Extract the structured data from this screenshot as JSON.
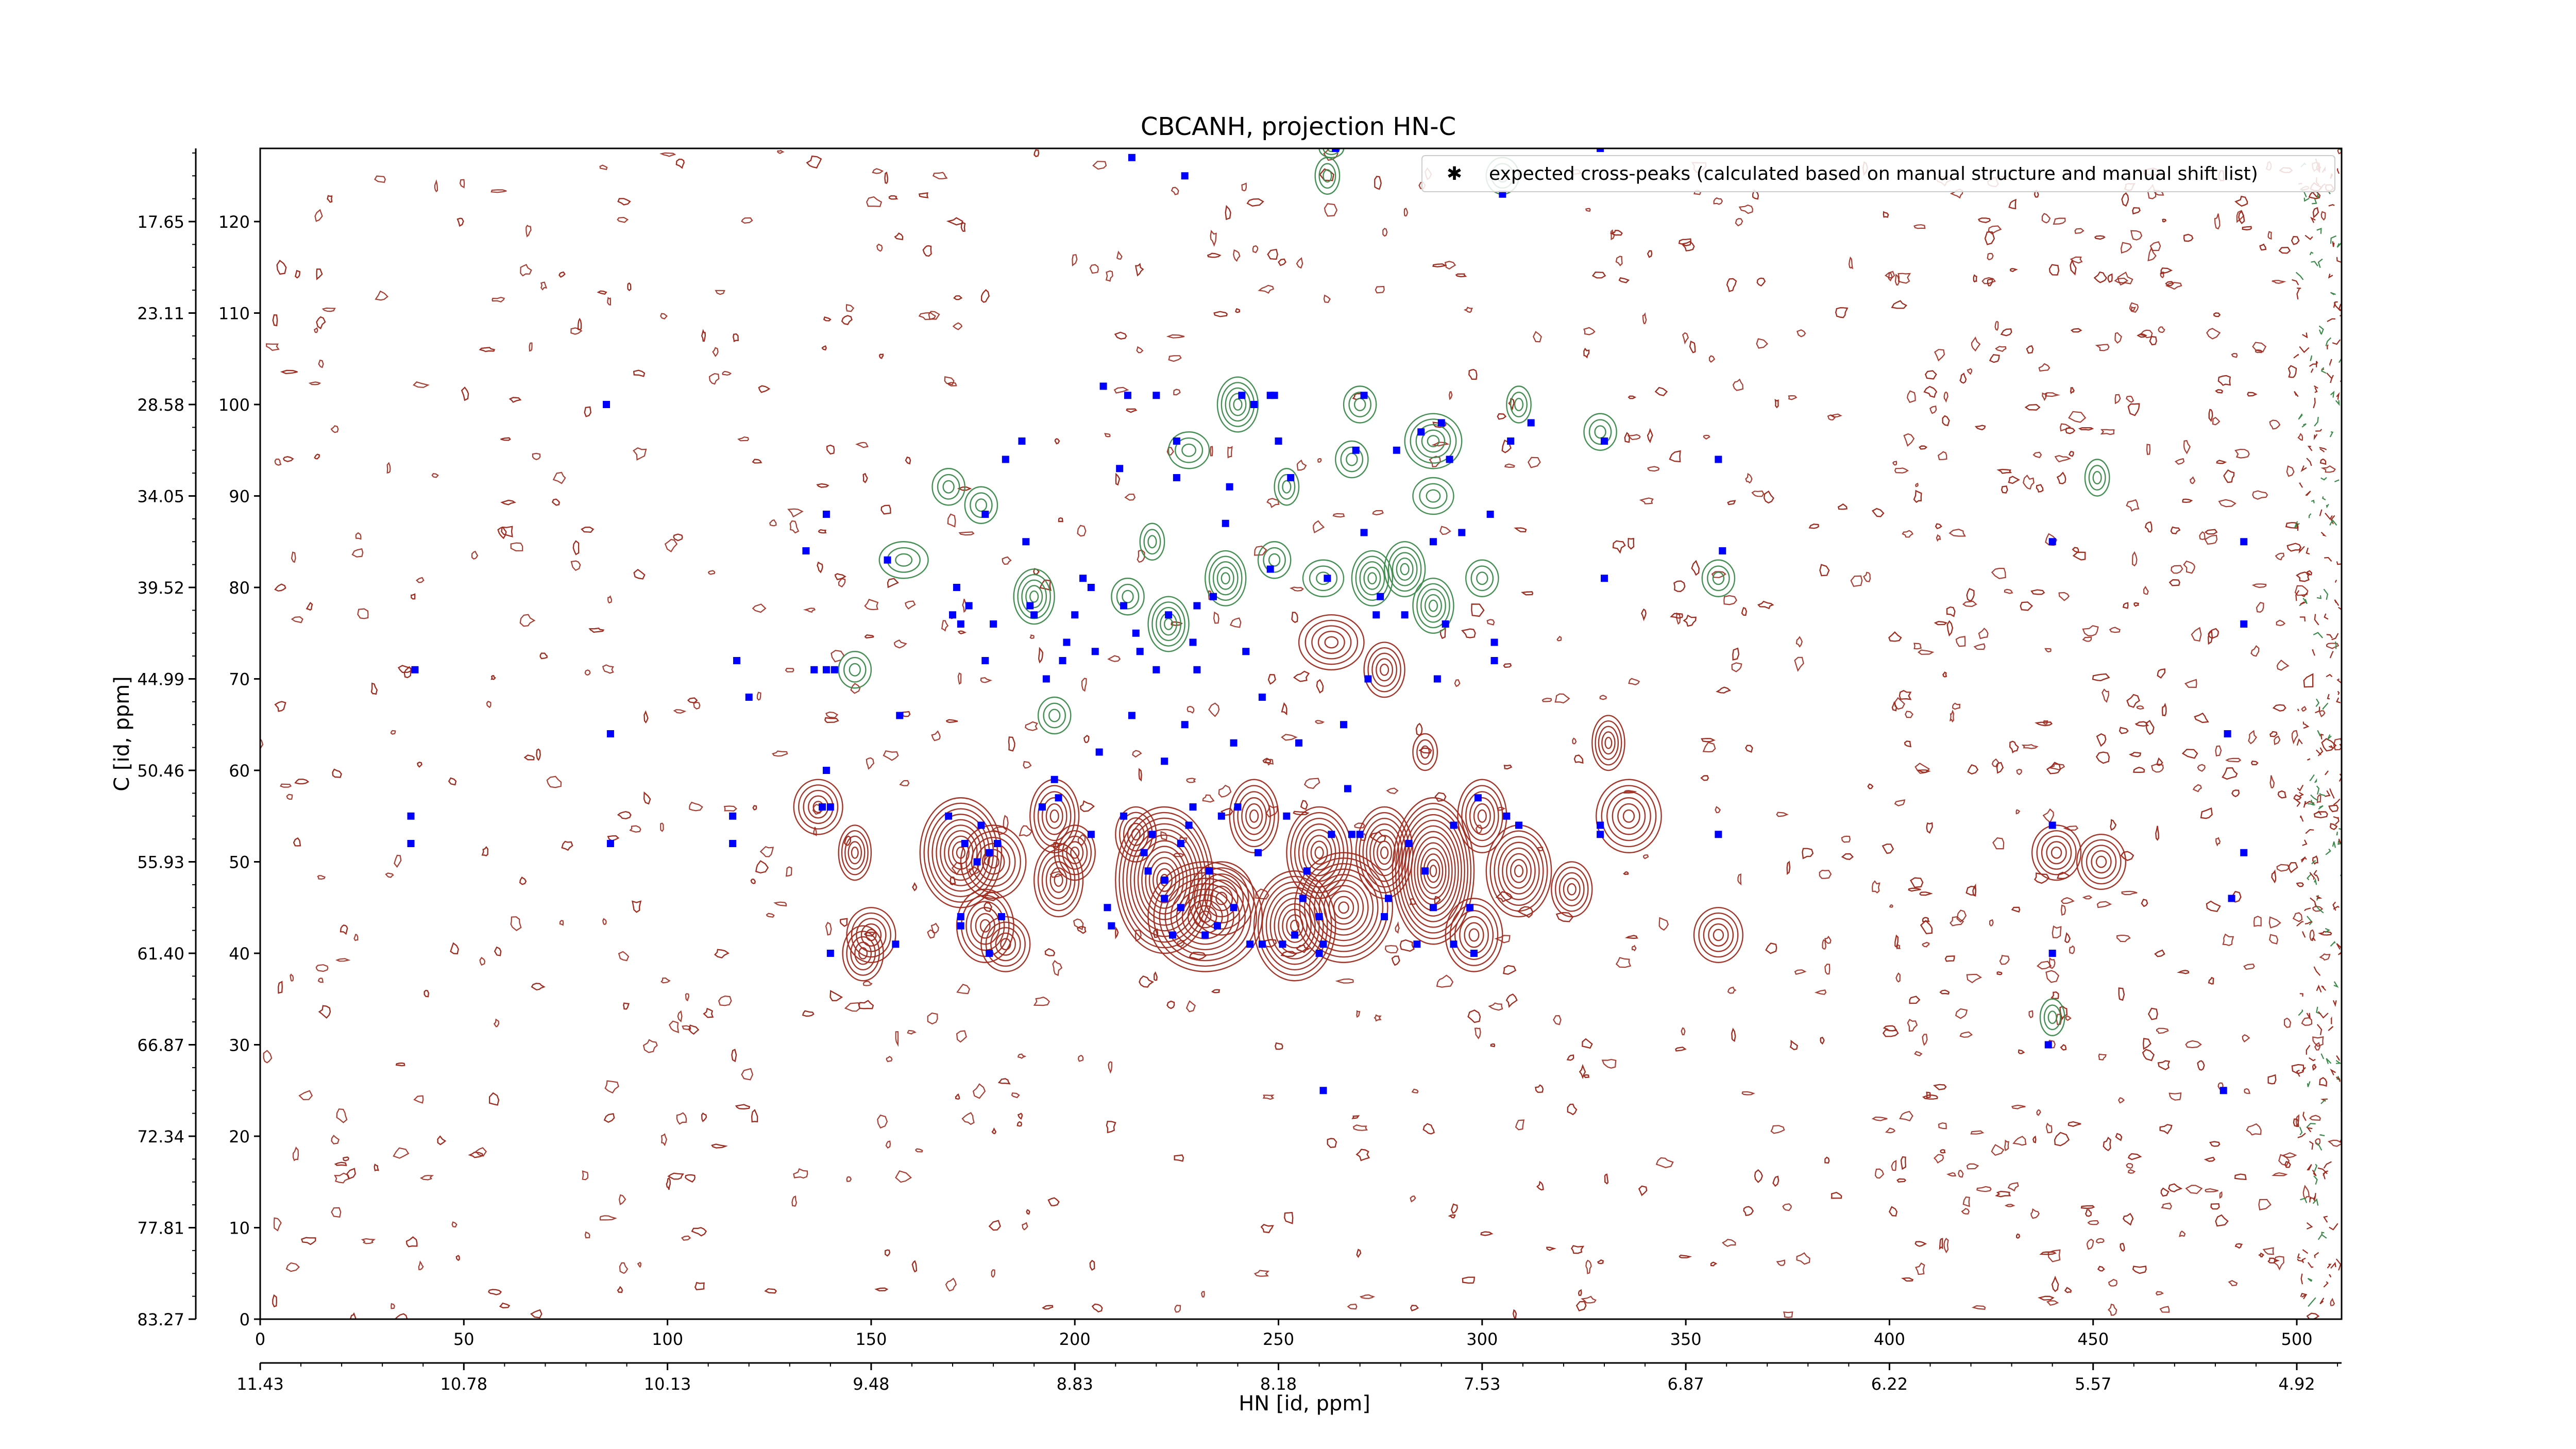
{
  "chart_data": {
    "type": "scatter",
    "title": "CBCANH, projection HN-C",
    "xlabel": "HN [id, ppm]",
    "ylabel": "C [id, ppm]",
    "x_index_ticks": [
      "0",
      "50",
      "100",
      "150",
      "200",
      "250",
      "300",
      "350",
      "400",
      "450",
      "500"
    ],
    "x_ppm_ticks": [
      "11.43",
      "10.78",
      "10.13",
      "9.48",
      "8.83",
      "8.18",
      "7.53",
      "6.87",
      "6.22",
      "5.57",
      "4.92"
    ],
    "y_index_ticks": [
      "0",
      "10",
      "20",
      "30",
      "40",
      "50",
      "60",
      "70",
      "80",
      "90",
      "100",
      "110",
      "120"
    ],
    "y_ppm_ticks": [
      "83.27",
      "77.81",
      "72.34",
      "66.87",
      "61.40",
      "55.93",
      "50.46",
      "44.99",
      "39.52",
      "34.05",
      "28.58",
      "23.11",
      "17.65"
    ],
    "xlim": [
      0,
      511
    ],
    "ylim": [
      0,
      128
    ],
    "legend": {
      "label": "expected cross-peaks (calculated based on manual structure and manual shift list)",
      "placement": "top-right"
    },
    "colors": {
      "positive_contour": "#a02a1e",
      "negative_contour": "#3a8a4a",
      "expected_marker": "#0000ff"
    },
    "contours_positive": [
      [
        137,
        56,
        6,
        3
      ],
      [
        146,
        51,
        4,
        3
      ],
      [
        148,
        40,
        5,
        3
      ],
      [
        150,
        42,
        6,
        3
      ],
      [
        172,
        51,
        10,
        6
      ],
      [
        180,
        50,
        8,
        4
      ],
      [
        178,
        43,
        7,
        4
      ],
      [
        183,
        41,
        6,
        3
      ],
      [
        195,
        55,
        6,
        4
      ],
      [
        200,
        51,
        5,
        3
      ],
      [
        196,
        48,
        6,
        4
      ],
      [
        215,
        53,
        5,
        3
      ],
      [
        222,
        48,
        12,
        8
      ],
      [
        232,
        44,
        14,
        6
      ],
      [
        236,
        46,
        8,
        4
      ],
      [
        244,
        55,
        6,
        4
      ],
      [
        254,
        43,
        10,
        6
      ],
      [
        260,
        51,
        8,
        5
      ],
      [
        266,
        45,
        12,
        6
      ],
      [
        276,
        51,
        7,
        5
      ],
      [
        288,
        49,
        10,
        8
      ],
      [
        300,
        55,
        6,
        4
      ],
      [
        298,
        42,
        7,
        4
      ],
      [
        309,
        49,
        8,
        5
      ],
      [
        336,
        55,
        8,
        4
      ],
      [
        358,
        42,
        6,
        3
      ],
      [
        441,
        51,
        6,
        3
      ],
      [
        452,
        50,
        6,
        3
      ],
      [
        263,
        74,
        8,
        3
      ],
      [
        276,
        71,
        5,
        3
      ],
      [
        286,
        62,
        3,
        2
      ],
      [
        331,
        63,
        4,
        3
      ],
      [
        322,
        47,
        5,
        3
      ]
    ],
    "contours_negative": [
      [
        146,
        71,
        4,
        2
      ],
      [
        158,
        83,
        6,
        2
      ],
      [
        169,
        91,
        4,
        2
      ],
      [
        177,
        89,
        4,
        2
      ],
      [
        190,
        79,
        5,
        3
      ],
      [
        195,
        66,
        4,
        2
      ],
      [
        213,
        79,
        4,
        2
      ],
      [
        219,
        85,
        3,
        2
      ],
      [
        223,
        76,
        5,
        3
      ],
      [
        228,
        95,
        5,
        2
      ],
      [
        237,
        81,
        5,
        3
      ],
      [
        240,
        100,
        5,
        3
      ],
      [
        249,
        83,
        4,
        2
      ],
      [
        252,
        91,
        3,
        2
      ],
      [
        261,
        81,
        5,
        2
      ],
      [
        262,
        125,
        3,
        2
      ],
      [
        268,
        94,
        4,
        2
      ],
      [
        270,
        100,
        4,
        2
      ],
      [
        273,
        81,
        5,
        3
      ],
      [
        281,
        82,
        5,
        3
      ],
      [
        288,
        96,
        7,
        3
      ],
      [
        288,
        90,
        5,
        2
      ],
      [
        288,
        78,
        5,
        3
      ],
      [
        300,
        81,
        4,
        2
      ],
      [
        305,
        125,
        4,
        2
      ],
      [
        309,
        100,
        3,
        2
      ],
      [
        329,
        97,
        4,
        2
      ],
      [
        358,
        81,
        4,
        2
      ],
      [
        440,
        33,
        3,
        2
      ],
      [
        451,
        92,
        3,
        2
      ],
      [
        263,
        128,
        3,
        1
      ]
    ],
    "points": [
      [
        37,
        55
      ],
      [
        37,
        52
      ],
      [
        38,
        71
      ],
      [
        85,
        100
      ],
      [
        86,
        64
      ],
      [
        86,
        52
      ],
      [
        116,
        55
      ],
      [
        117,
        72
      ],
      [
        116,
        52
      ],
      [
        120,
        68
      ],
      [
        134,
        84
      ],
      [
        136,
        71
      ],
      [
        138,
        56
      ],
      [
        139,
        71
      ],
      [
        140,
        56
      ],
      [
        140,
        40
      ],
      [
        141,
        71
      ],
      [
        139,
        60
      ],
      [
        139,
        88
      ],
      [
        154,
        83
      ],
      [
        156,
        41
      ],
      [
        157,
        66
      ],
      [
        169,
        55
      ],
      [
        170,
        77
      ],
      [
        171,
        80
      ],
      [
        172,
        76
      ],
      [
        172,
        44
      ],
      [
        172,
        43
      ],
      [
        173,
        52
      ],
      [
        174,
        78
      ],
      [
        176,
        50
      ],
      [
        177,
        54
      ],
      [
        178,
        72
      ],
      [
        178,
        88
      ],
      [
        179,
        40
      ],
      [
        179,
        51
      ],
      [
        180,
        76
      ],
      [
        181,
        52
      ],
      [
        182,
        44
      ],
      [
        183,
        94
      ],
      [
        187,
        96
      ],
      [
        188,
        85
      ],
      [
        189,
        78
      ],
      [
        190,
        77
      ],
      [
        192,
        56
      ],
      [
        193,
        70
      ],
      [
        195,
        59
      ],
      [
        196,
        57
      ],
      [
        197,
        72
      ],
      [
        198,
        74
      ],
      [
        200,
        77
      ],
      [
        202,
        81
      ],
      [
        204,
        80
      ],
      [
        204,
        53
      ],
      [
        205,
        73
      ],
      [
        206,
        62
      ],
      [
        207,
        102
      ],
      [
        208,
        45
      ],
      [
        209,
        43
      ],
      [
        211,
        93
      ],
      [
        212,
        78
      ],
      [
        212,
        55
      ],
      [
        213,
        101
      ],
      [
        214,
        127
      ],
      [
        214,
        66
      ],
      [
        215,
        75
      ],
      [
        216,
        73
      ],
      [
        217,
        51
      ],
      [
        218,
        49
      ],
      [
        219,
        53
      ],
      [
        220,
        71
      ],
      [
        220,
        101
      ],
      [
        222,
        46
      ],
      [
        222,
        61
      ],
      [
        222,
        48
      ],
      [
        223,
        77
      ],
      [
        224,
        42
      ],
      [
        225,
        92
      ],
      [
        225,
        96
      ],
      [
        226,
        52
      ],
      [
        226,
        45
      ],
      [
        227,
        125
      ],
      [
        227,
        65
      ],
      [
        228,
        54
      ],
      [
        229,
        74
      ],
      [
        229,
        56
      ],
      [
        230,
        78
      ],
      [
        230,
        71
      ],
      [
        232,
        42
      ],
      [
        233,
        49
      ],
      [
        234,
        79
      ],
      [
        235,
        43
      ],
      [
        236,
        55
      ],
      [
        237,
        87
      ],
      [
        238,
        91
      ],
      [
        239,
        63
      ],
      [
        239,
        45
      ],
      [
        240,
        56
      ],
      [
        241,
        101
      ],
      [
        242,
        73
      ],
      [
        243,
        41
      ],
      [
        244,
        100
      ],
      [
        245,
        51
      ],
      [
        246,
        41
      ],
      [
        246,
        68
      ],
      [
        248,
        101
      ],
      [
        248,
        82
      ],
      [
        249,
        101
      ],
      [
        250,
        96
      ],
      [
        251,
        41
      ],
      [
        252,
        55
      ],
      [
        253,
        92
      ],
      [
        254,
        42
      ],
      [
        255,
        63
      ],
      [
        256,
        46
      ],
      [
        257,
        49
      ],
      [
        260,
        40
      ],
      [
        260,
        44
      ],
      [
        261,
        41
      ],
      [
        261,
        25
      ],
      [
        262,
        81
      ],
      [
        263,
        53
      ],
      [
        264,
        128
      ],
      [
        266,
        65
      ],
      [
        267,
        58
      ],
      [
        268,
        53
      ],
      [
        269,
        95
      ],
      [
        270,
        53
      ],
      [
        271,
        101
      ],
      [
        271,
        86
      ],
      [
        272,
        70
      ],
      [
        274,
        77
      ],
      [
        275,
        79
      ],
      [
        276,
        44
      ],
      [
        277,
        46
      ],
      [
        279,
        95
      ],
      [
        281,
        77
      ],
      [
        282,
        52
      ],
      [
        284,
        41
      ],
      [
        285,
        97
      ],
      [
        286,
        49
      ],
      [
        288,
        85
      ],
      [
        288,
        45
      ],
      [
        289,
        70
      ],
      [
        290,
        98
      ],
      [
        291,
        76
      ],
      [
        292,
        94
      ],
      [
        293,
        41
      ],
      [
        293,
        54
      ],
      [
        295,
        86
      ],
      [
        297,
        45
      ],
      [
        298,
        40
      ],
      [
        299,
        57
      ],
      [
        302,
        88
      ],
      [
        303,
        72
      ],
      [
        303,
        74
      ],
      [
        305,
        123
      ],
      [
        306,
        55
      ],
      [
        307,
        96
      ],
      [
        309,
        54
      ],
      [
        312,
        98
      ],
      [
        329,
        128
      ],
      [
        329,
        54
      ],
      [
        329,
        53
      ],
      [
        330,
        81
      ],
      [
        330,
        96
      ],
      [
        358,
        94
      ],
      [
        358,
        53
      ],
      [
        359,
        84
      ],
      [
        439,
        30
      ],
      [
        440,
        40
      ],
      [
        440,
        54
      ],
      [
        440,
        85
      ],
      [
        487,
        76
      ],
      [
        487,
        51
      ],
      [
        487,
        85
      ],
      [
        483,
        64
      ],
      [
        484,
        46
      ],
      [
        482,
        25
      ]
    ]
  }
}
